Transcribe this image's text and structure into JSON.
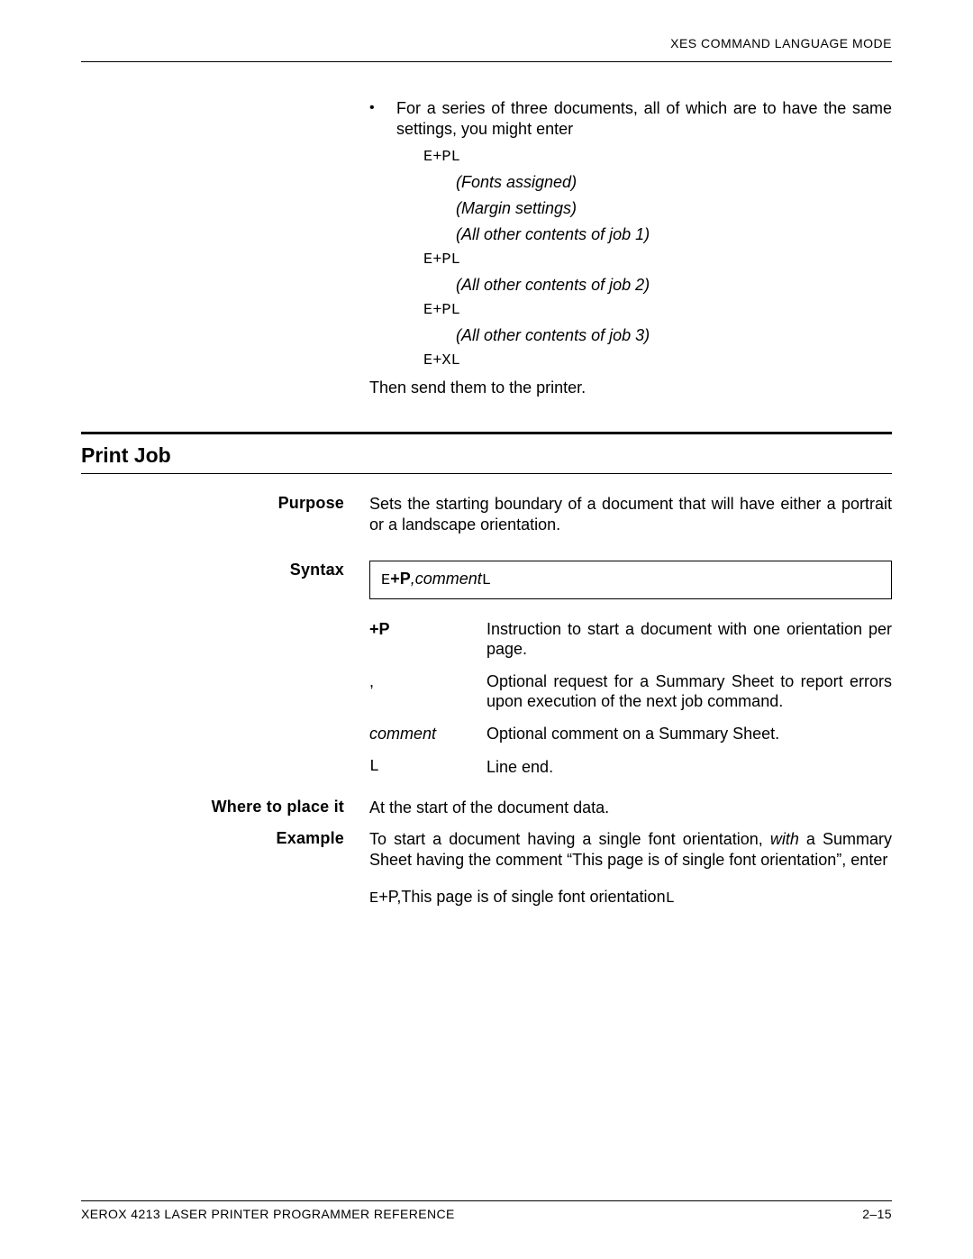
{
  "header": {
    "right_text": "XES COMMAND LANGUAGE MODE"
  },
  "intro": {
    "bullet_text": "For a series of three documents, all of which are to have the same settings, you might enter",
    "code1": "E+PL",
    "sub1": "(Fonts assigned)",
    "sub2": "(Margin settings)",
    "sub3": "(All other contents of job 1)",
    "code2": "E+PL",
    "sub4": "(All other contents of job 2)",
    "code3": "E+PL",
    "sub5": "(All other contents of job 3)",
    "code4": "E+XL",
    "then": "Then send them to the printer."
  },
  "section": {
    "title": "Print Job",
    "purpose_label": "Purpose",
    "purpose_text": "Sets the starting boundary of a document that will have either a portrait or a landscape orientation.",
    "syntax_label": "Syntax",
    "syntax_E": "E",
    "syntax_plusP": "+P",
    "syntax_comment": ",comment",
    "syntax_L": "L",
    "params": [
      {
        "key": "+P",
        "key_bold": true,
        "key_mono": false,
        "key_italic": false,
        "desc": "Instruction to start a document with one orientation per page."
      },
      {
        "key": ",",
        "key_bold": false,
        "key_mono": false,
        "key_italic": false,
        "desc": "Optional request for a Summary Sheet to report errors upon execution of the next job command."
      },
      {
        "key": "comment",
        "key_bold": false,
        "key_mono": false,
        "key_italic": true,
        "desc": "Optional comment on a Summary Sheet."
      },
      {
        "key": "L",
        "key_bold": false,
        "key_mono": true,
        "key_italic": false,
        "desc": "Line end."
      }
    ],
    "where_label": "Where to place it",
    "where_text": "At the start of the document data.",
    "example_label": "Example",
    "example_pre": "To start a document having a single font orientation, ",
    "example_with": "with",
    "example_post": " a Summary Sheet having the comment “This page is of single font orientation”, enter",
    "example_code_E": "E",
    "example_code_mid": "+P,This page is of single font orientation",
    "example_code_L": "L"
  },
  "footer": {
    "left": "XEROX 4213 LASER PRINTER PROGRAMMER REFERENCE",
    "right": "2–15"
  }
}
